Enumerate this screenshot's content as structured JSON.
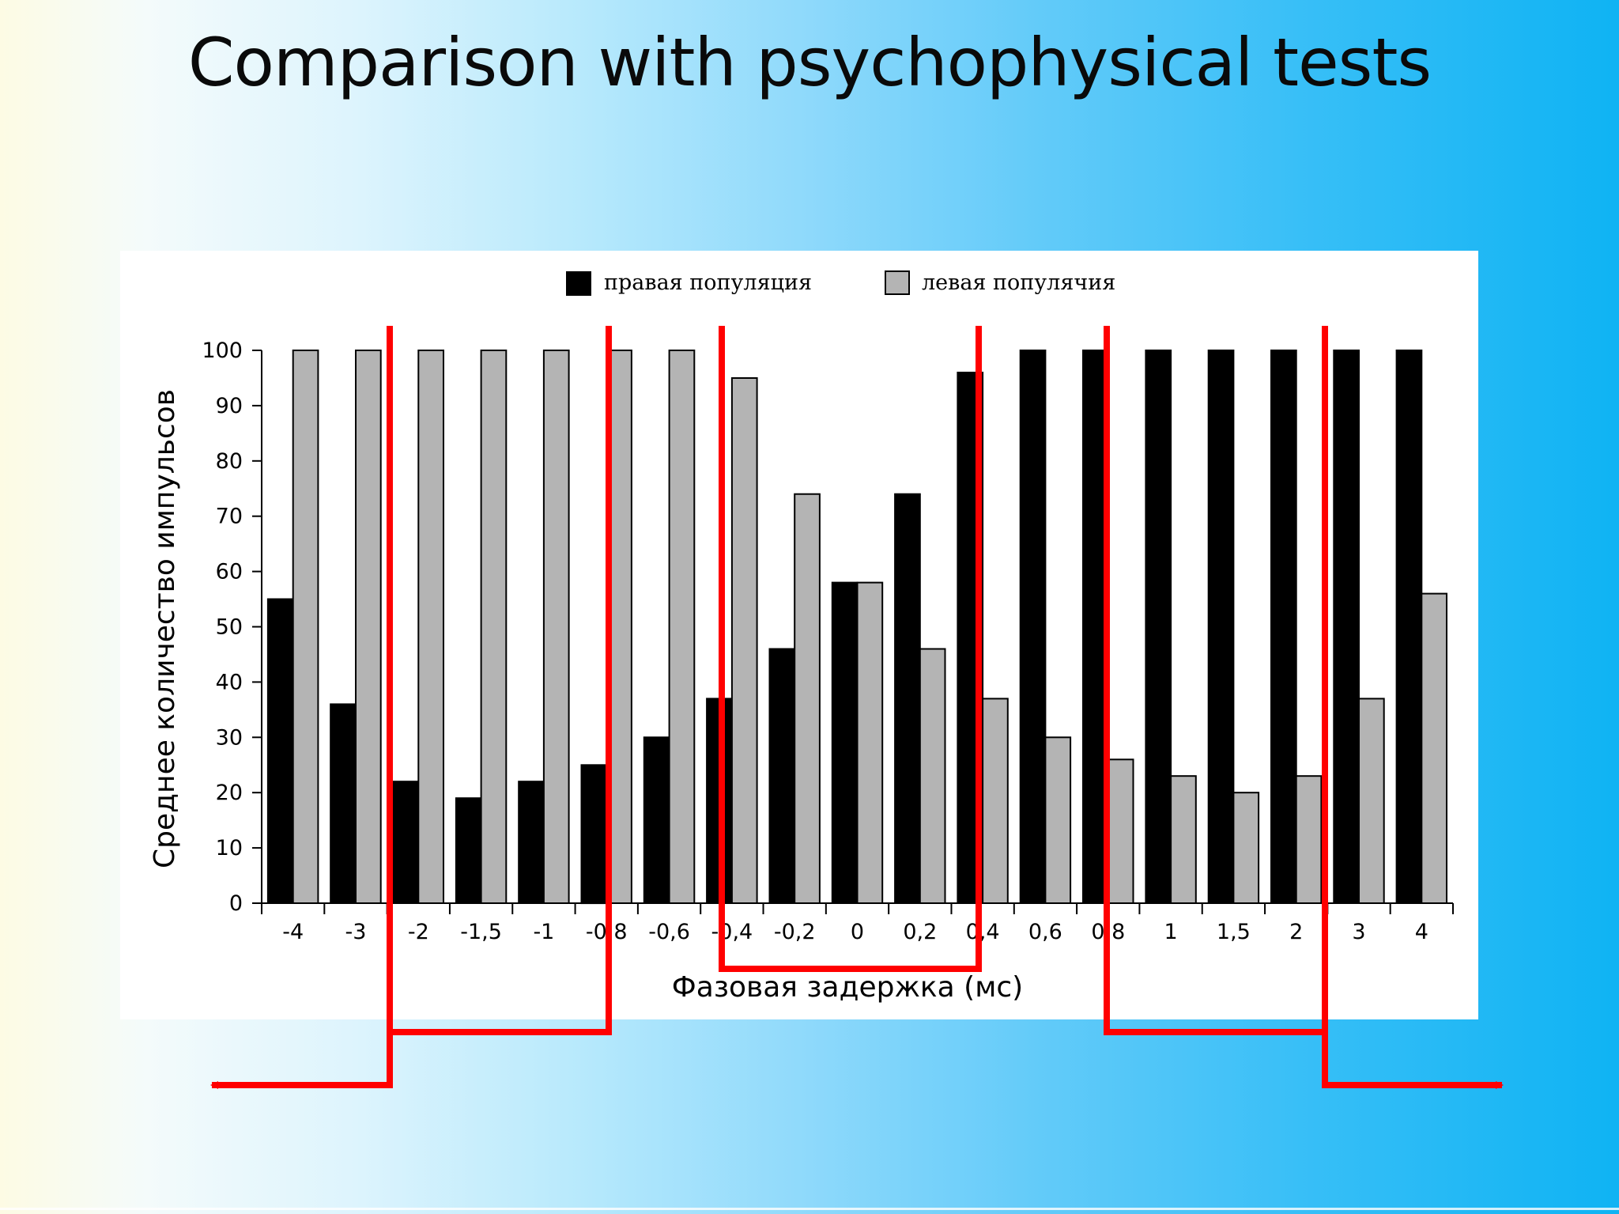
{
  "slide": {
    "title": "Comparison with psychophysical tests"
  },
  "chart_data": {
    "type": "bar",
    "categories": [
      "-4",
      "-3",
      "-2",
      "-1,5",
      "-1",
      "-0,8",
      "-0,6",
      "-0,4",
      "-0,2",
      "0",
      "0,2",
      "0,4",
      "0,6",
      "0,8",
      "1",
      "1,5",
      "2",
      "3",
      "4"
    ],
    "series": [
      {
        "name": "правая популяция",
        "color": "#000000",
        "values": [
          55,
          36,
          22,
          19,
          22,
          25,
          30,
          37,
          46,
          58,
          74,
          96,
          100,
          100,
          100,
          100,
          100,
          100,
          100
        ]
      },
      {
        "name": "левая популячия",
        "color": "#b4b4b4",
        "values": [
          100,
          100,
          100,
          100,
          100,
          100,
          100,
          95,
          74,
          58,
          46,
          37,
          30,
          26,
          23,
          20,
          23,
          37,
          56
        ]
      }
    ],
    "xlabel": "Фазовая задержка (мс)",
    "ylabel": "Среднее количество импульсов",
    "ylim": [
      0,
      100
    ],
    "yticks": [
      "0",
      "10",
      "20",
      "30",
      "40",
      "50",
      "60",
      "70",
      "80",
      "90",
      "100"
    ],
    "grid": false,
    "legend": "top-center"
  },
  "annotations": {
    "color": "#ff0000",
    "description": "red bracket lines grouping delay ranges with outward arrows"
  }
}
